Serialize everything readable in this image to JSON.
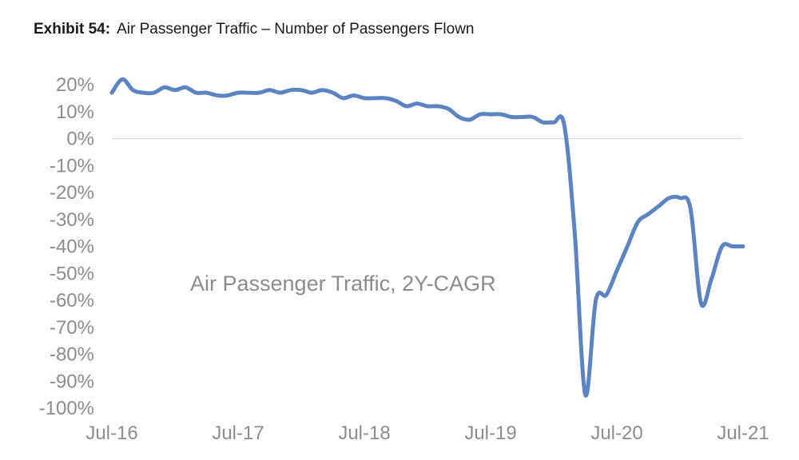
{
  "header": {
    "exhibit_label": "Exhibit 54:",
    "title": "Air Passenger Traffic – Number of Passengers Flown"
  },
  "chart_data": {
    "type": "line",
    "title": "Air Passenger Traffic – Number of Passengers Flown",
    "annotation": "Air Passenger Traffic, 2Y-CAGR",
    "xlabel": "",
    "ylabel": "",
    "x_tick_labels": [
      "Jul-16",
      "Jul-17",
      "Jul-18",
      "Jul-19",
      "Jul-20",
      "Jul-21"
    ],
    "y_tick_labels": [
      "20%",
      "10%",
      "0%",
      "-10%",
      "-20%",
      "-30%",
      "-40%",
      "-50%",
      "-60%",
      "-70%",
      "-80%",
      "-90%",
      "-100%"
    ],
    "ylim": [
      -100,
      20
    ],
    "grid": false,
    "series_color": "#5b84c1",
    "series": [
      {
        "x": [
          "Jul-16",
          "Aug-16",
          "Sep-16",
          "Oct-16",
          "Nov-16",
          "Dec-16",
          "Jan-17",
          "Feb-17",
          "Mar-17",
          "Apr-17",
          "May-17",
          "Jun-17",
          "Jul-17",
          "Aug-17",
          "Sep-17",
          "Oct-17",
          "Nov-17",
          "Dec-17",
          "Jan-18",
          "Feb-18",
          "Mar-18",
          "Apr-18",
          "May-18",
          "Jun-18",
          "Jul-18",
          "Aug-18",
          "Sep-18",
          "Oct-18",
          "Nov-18",
          "Dec-18",
          "Jan-19",
          "Feb-19",
          "Mar-19",
          "Apr-19",
          "May-19",
          "Jun-19",
          "Jul-19",
          "Aug-19",
          "Sep-19",
          "Oct-19",
          "Nov-19",
          "Dec-19",
          "Jan-20",
          "Feb-20",
          "Mar-20",
          "Apr-20",
          "May-20",
          "Jun-20",
          "Jul-20",
          "Aug-20",
          "Sep-20",
          "Oct-20",
          "Nov-20",
          "Dec-20",
          "Jan-21",
          "Feb-21",
          "Mar-21",
          "Apr-21",
          "May-21",
          "Jun-21",
          "Jul-21"
        ],
        "values": [
          17,
          22,
          18,
          17,
          17,
          19,
          18,
          19,
          17,
          17,
          16,
          16,
          17,
          17,
          17,
          18,
          17,
          18,
          18,
          17,
          18,
          17,
          15,
          16,
          15,
          15,
          15,
          14,
          12,
          13,
          12,
          12,
          11,
          8,
          7,
          9,
          9,
          9,
          8,
          8,
          8,
          6,
          6,
          5,
          -35,
          -95,
          -60,
          -58,
          -49,
          -40,
          -31,
          -28,
          -25,
          -22,
          -22,
          -26,
          -61,
          -52,
          -40,
          -40,
          -40
        ]
      }
    ]
  }
}
